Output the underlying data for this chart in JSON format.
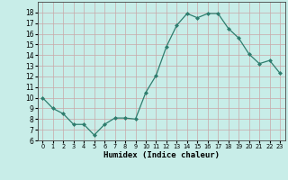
{
  "x": [
    0,
    1,
    2,
    3,
    4,
    5,
    6,
    7,
    8,
    9,
    10,
    11,
    12,
    13,
    14,
    15,
    16,
    17,
    18,
    19,
    20,
    21,
    22,
    23
  ],
  "y": [
    10,
    9,
    8.5,
    7.5,
    7.5,
    6.5,
    7.5,
    8.1,
    8.1,
    8.0,
    10.5,
    12.1,
    14.8,
    16.8,
    17.9,
    17.5,
    17.9,
    17.9,
    16.5,
    15.6,
    14.1,
    13.2,
    13.5,
    12.3
  ],
  "xlabel": "Humidex (Indice chaleur)",
  "ylim": [
    6,
    19
  ],
  "xlim": [
    -0.5,
    23.5
  ],
  "yticks": [
    6,
    7,
    8,
    9,
    10,
    11,
    12,
    13,
    14,
    15,
    16,
    17,
    18
  ],
  "xtick_labels": [
    "0",
    "1",
    "2",
    "3",
    "4",
    "5",
    "6",
    "7",
    "8",
    "9",
    "10",
    "11",
    "12",
    "13",
    "14",
    "15",
    "16",
    "17",
    "18",
    "19",
    "20",
    "21",
    "22",
    "23"
  ],
  "line_color": "#2e7d6e",
  "marker_color": "#2e7d6e",
  "bg_color": "#c8ede8",
  "grid_color": "#c8a8a8",
  "xlabel_fontsize": 6.5,
  "ytick_fontsize": 5.5,
  "xtick_fontsize": 4.8
}
